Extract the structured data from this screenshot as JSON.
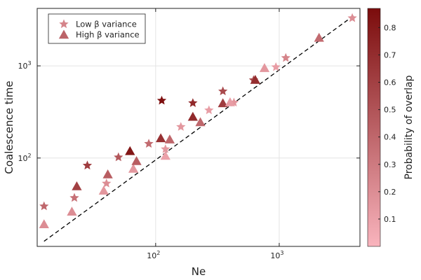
{
  "chart_data": {
    "type": "scatter",
    "xlabel": "Ne",
    "ylabel": "Coalescence time",
    "xscale": "log",
    "yscale": "log",
    "xlim": [
      11,
      4500
    ],
    "ylim": [
      11,
      4200
    ],
    "x_ticks": [
      {
        "value": 100,
        "base": "10",
        "exp": "2"
      },
      {
        "value": 1000,
        "base": "10",
        "exp": "3"
      }
    ],
    "y_ticks": [
      {
        "value": 100,
        "base": "10",
        "exp": "2"
      },
      {
        "value": 1000,
        "base": "10",
        "exp": "3"
      }
    ],
    "grid": true,
    "legend_position": "top-left",
    "reference_line": {
      "style": "dashed",
      "color": "#000000",
      "points": [
        [
          12.5,
          12.5
        ],
        [
          4000,
          3500
        ]
      ]
    },
    "colorbar": {
      "label": "Probability of overlap",
      "range": [
        0.0,
        0.87
      ],
      "ticks": [
        "0.1",
        "0.2",
        "0.3",
        "0.4",
        "0.5",
        "0.6",
        "0.7",
        "0.8"
      ],
      "tick_values": [
        0.1,
        0.2,
        0.3,
        0.4,
        0.5,
        0.6,
        0.7,
        0.8
      ],
      "color_low": "#f9b4bd",
      "color_high": "#7b0c0c"
    },
    "series": [
      {
        "name": "Low β variance",
        "marker": "star",
        "points": [
          {
            "x": 12.5,
            "y": 30,
            "c": 0.4
          },
          {
            "x": 22,
            "y": 37,
            "c": 0.35
          },
          {
            "x": 28,
            "y": 83,
            "c": 0.62
          },
          {
            "x": 40,
            "y": 53,
            "c": 0.2
          },
          {
            "x": 50,
            "y": 102,
            "c": 0.48
          },
          {
            "x": 88,
            "y": 143,
            "c": 0.38
          },
          {
            "x": 112,
            "y": 420,
            "c": 0.85
          },
          {
            "x": 120,
            "y": 125,
            "c": 0.15
          },
          {
            "x": 160,
            "y": 218,
            "c": 0.15
          },
          {
            "x": 200,
            "y": 395,
            "c": 0.72
          },
          {
            "x": 270,
            "y": 330,
            "c": 0.12
          },
          {
            "x": 350,
            "y": 530,
            "c": 0.55
          },
          {
            "x": 430,
            "y": 400,
            "c": 0.15
          },
          {
            "x": 620,
            "y": 700,
            "c": 0.55
          },
          {
            "x": 940,
            "y": 970,
            "c": 0.12
          },
          {
            "x": 1130,
            "y": 1220,
            "c": 0.25
          },
          {
            "x": 3900,
            "y": 3300,
            "c": 0.2
          }
        ]
      },
      {
        "name": "High β variance",
        "marker": "triangle",
        "points": [
          {
            "x": 12.5,
            "y": 19,
            "c": 0.2
          },
          {
            "x": 21,
            "y": 26,
            "c": 0.2
          },
          {
            "x": 23,
            "y": 49,
            "c": 0.6
          },
          {
            "x": 38,
            "y": 44,
            "c": 0.15
          },
          {
            "x": 41,
            "y": 66,
            "c": 0.45
          },
          {
            "x": 62,
            "y": 118,
            "c": 0.82
          },
          {
            "x": 66,
            "y": 76,
            "c": 0.15
          },
          {
            "x": 70,
            "y": 92,
            "c": 0.45
          },
          {
            "x": 110,
            "y": 163,
            "c": 0.68
          },
          {
            "x": 120,
            "y": 105,
            "c": 0.1
          },
          {
            "x": 130,
            "y": 158,
            "c": 0.4
          },
          {
            "x": 200,
            "y": 278,
            "c": 0.72
          },
          {
            "x": 230,
            "y": 243,
            "c": 0.4
          },
          {
            "x": 350,
            "y": 390,
            "c": 0.62
          },
          {
            "x": 400,
            "y": 400,
            "c": 0.12
          },
          {
            "x": 640,
            "y": 700,
            "c": 0.7
          },
          {
            "x": 760,
            "y": 940,
            "c": 0.15
          },
          {
            "x": 2100,
            "y": 2000,
            "c": 0.38
          }
        ]
      }
    ]
  }
}
